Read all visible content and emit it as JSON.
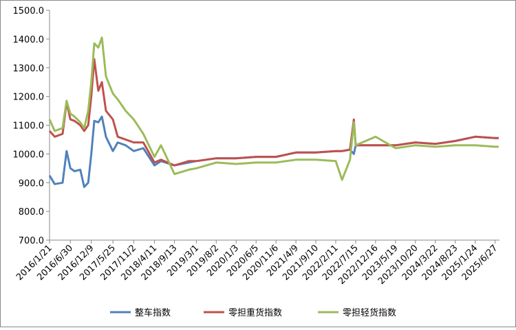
{
  "chart_data": {
    "type": "line",
    "x": [
      "2016/1/21",
      "2016/3/1",
      "2016/5/1",
      "2016/6/1",
      "2016/6/30",
      "2016/8/1",
      "2016/9/15",
      "2016/10/15",
      "2016/11/15",
      "2016/12/9",
      "2017/1/1",
      "2017/2/1",
      "2017/3/1",
      "2017/4/1",
      "2017/5/25",
      "2017/7/1",
      "2017/9/1",
      "2017/11/2",
      "2018/1/15",
      "2018/4/11",
      "2018/6/1",
      "2018/9/13",
      "2019/1/1",
      "2019/3/1",
      "2019/8/2",
      "2020/1/3",
      "2020/6/5",
      "2020/11/6",
      "2021/4/9",
      "2021/9/10",
      "2022/2/11",
      "2022/4/1",
      "2022/6/1",
      "2022/7/1",
      "2022/7/15",
      "2022/12/16",
      "2023/5/19",
      "2023/10/20",
      "2024/3/22",
      "2024/8/23",
      "2025/1/24",
      "2025/6/27",
      "2025/7/25"
    ],
    "series": [
      {
        "name": "整车指数",
        "color": "#4f81bd",
        "values": [
          925,
          895,
          900,
          1010,
          950,
          940,
          945,
          885,
          900,
          1000,
          1115,
          1110,
          1130,
          1060,
          1010,
          1040,
          1030,
          1010,
          1020,
          960,
          975,
          960,
          970,
          975,
          985,
          985,
          990,
          990,
          1005,
          1005,
          1010,
          1010,
          1015,
          1000,
          1030,
          1030,
          1030,
          1040,
          1035,
          1045,
          1060,
          1055,
          1055
        ]
      },
      {
        "name": "零担重货指数",
        "color": "#c0504d",
        "values": [
          1080,
          1060,
          1070,
          1180,
          1120,
          1115,
          1100,
          1080,
          1100,
          1200,
          1330,
          1220,
          1250,
          1150,
          1120,
          1060,
          1050,
          1040,
          1040,
          970,
          980,
          960,
          975,
          975,
          985,
          985,
          990,
          990,
          1005,
          1005,
          1010,
          1010,
          1015,
          1120,
          1030,
          1030,
          1030,
          1040,
          1035,
          1045,
          1060,
          1055,
          1055
        ]
      },
      {
        "name": "零担轻货指数",
        "color": "#9bbb59",
        "values": [
          1120,
          1080,
          1090,
          1185,
          1140,
          1130,
          1110,
          1090,
          1150,
          1250,
          1385,
          1370,
          1405,
          1270,
          1210,
          1190,
          1150,
          1120,
          1070,
          990,
          1030,
          930,
          945,
          950,
          970,
          965,
          970,
          970,
          980,
          980,
          975,
          910,
          980,
          1110,
          1030,
          1060,
          1020,
          1030,
          1025,
          1030,
          1030,
          1025,
          1025
        ]
      }
    ],
    "xlim": [
      "2016/1/21",
      "2025/7/31"
    ],
    "xticks": [
      "2016/1/21",
      "2016/6/30",
      "2016/12/9",
      "2017/5/25",
      "2017/11/2",
      "2018/4/11",
      "2018/9/13",
      "2019/3/1",
      "2019/8/2",
      "2020/1/3",
      "2020/6/5",
      "2020/11/6",
      "2021/4/9",
      "2021/9/10",
      "2022/2/11",
      "2022/7/15",
      "2022/12/16",
      "2023/5/19",
      "2023/10/20",
      "2024/3/22",
      "2024/8/23",
      "2025/1/24",
      "2025/6/27"
    ],
    "ylim": [
      700,
      1500
    ],
    "yticks": [
      {
        "value": 700,
        "label": "700.0"
      },
      {
        "value": 800,
        "label": "800.0"
      },
      {
        "value": 900,
        "label": "900.0"
      },
      {
        "value": 1000,
        "label": "1000.0"
      },
      {
        "value": 1100,
        "label": "1100.0"
      },
      {
        "value": 1200,
        "label": "1200.0"
      },
      {
        "value": 1300,
        "label": "1300.0"
      },
      {
        "value": 1400,
        "label": "1400.0"
      },
      {
        "value": 1500,
        "label": "1500.0"
      }
    ],
    "legend": "bottom"
  }
}
